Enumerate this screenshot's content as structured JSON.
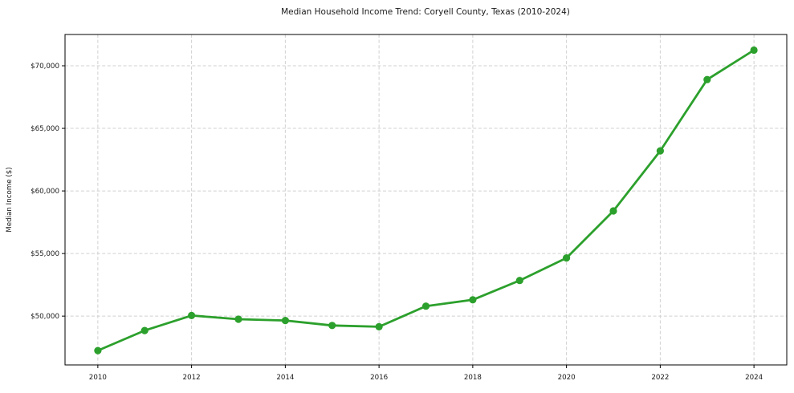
{
  "chart_data": {
    "type": "line",
    "title": "Median Household Income Trend: Coryell County, Texas (2010-2024)",
    "xlabel": "",
    "ylabel": "Median Income ($)",
    "x": [
      2010,
      2011,
      2012,
      2013,
      2014,
      2015,
      2016,
      2017,
      2018,
      2019,
      2020,
      2021,
      2022,
      2023,
      2024
    ],
    "values": [
      47250,
      48850,
      50050,
      49750,
      49650,
      49250,
      49150,
      50800,
      51300,
      52850,
      54650,
      58400,
      63200,
      68900,
      71250
    ],
    "xticks": {
      "values": [
        2010,
        2012,
        2014,
        2016,
        2018,
        2020,
        2022,
        2024
      ],
      "labels": [
        "2010",
        "2012",
        "2014",
        "2016",
        "2018",
        "2020",
        "2022",
        "2024"
      ]
    },
    "yticks": {
      "values": [
        50000,
        55000,
        60000,
        65000,
        70000
      ],
      "labels": [
        "$50,000",
        "$55,000",
        "$60,000",
        "$65,000",
        "$70,000"
      ]
    },
    "xlim": [
      2009.3,
      2024.7
    ],
    "ylim": [
      46100,
      72500
    ],
    "grid": true,
    "grid_style": "dashed",
    "legend": "none",
    "colors": {
      "line": "#2ca02c",
      "marker": "#2ca02c",
      "grid": "#d0d0d0",
      "axis": "#000000",
      "text": "#1a1a1a",
      "background": "#ffffff"
    }
  }
}
